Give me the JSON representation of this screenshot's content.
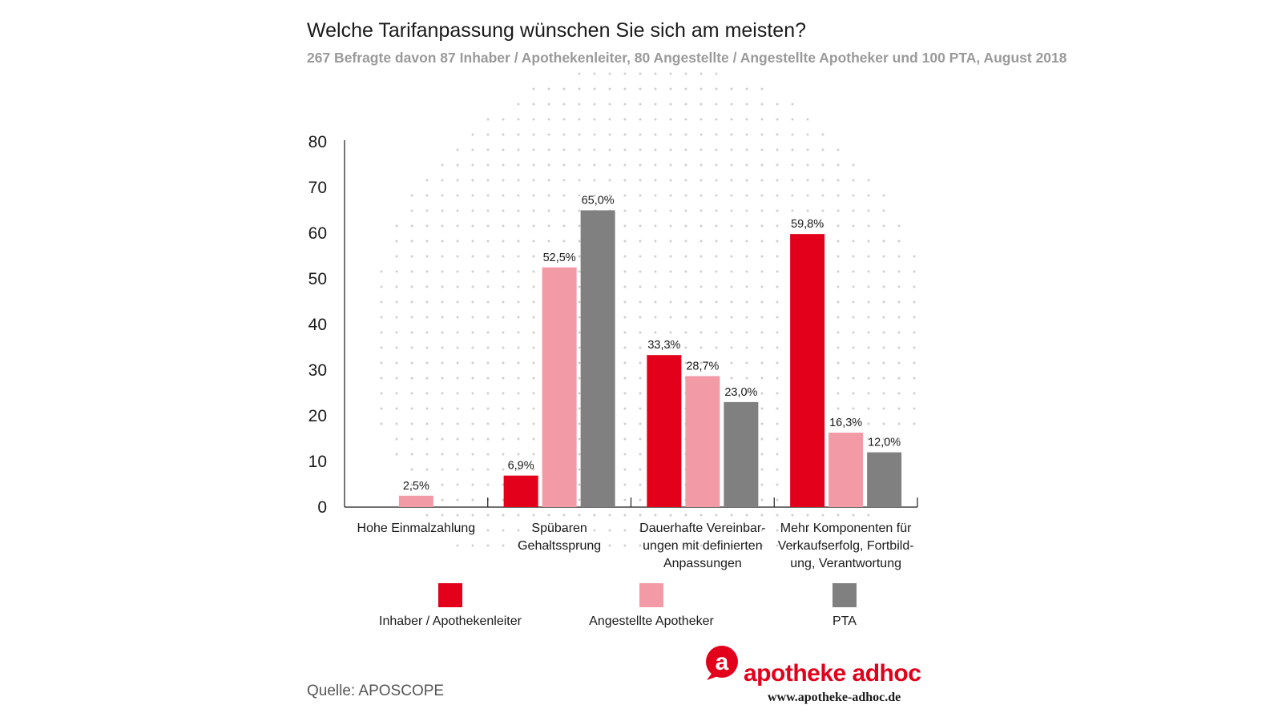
{
  "header": {
    "title": "Welche Tarifanpassung wünschen Sie sich am meisten?",
    "subtitle": "267 Befragte davon 87 Inhaber / Apothekenleiter, 80 Angestellte / Angestellte Apotheker und 100 PTA,  August 2018"
  },
  "chart_data": {
    "type": "bar",
    "title": "Welche Tarifanpassung wünschen Sie sich am meisten?",
    "categories": [
      [
        "Hohe Einmalzahlung"
      ],
      [
        "Spübaren",
        "Gehaltssprung"
      ],
      [
        "Dauerhafte Vereinbar-",
        "ungen mit definierten",
        "Anpassungen"
      ],
      [
        "Mehr Komponenten für",
        "Verkaufserfolg, Fortbild-",
        "ung, Verantwortung"
      ]
    ],
    "series": [
      {
        "name": "Inhaber / Apothekenleiter",
        "color": "#e2001a",
        "values": [
          null,
          6.9,
          33.3,
          59.8
        ],
        "labels": [
          "",
          "6,9%",
          "33,3%",
          "59,8%"
        ]
      },
      {
        "name": "Angestellte Apotheker",
        "color": "#f29ba6",
        "values": [
          2.5,
          52.5,
          28.7,
          16.3
        ],
        "labels": [
          "2,5%",
          "52,5%",
          "28,7%",
          "16,3%"
        ]
      },
      {
        "name": "PTA",
        "color": "#808080",
        "values": [
          null,
          65.0,
          23.0,
          12.0
        ],
        "labels": [
          "",
          "65,0%",
          "23,0%",
          "12,0%"
        ]
      }
    ],
    "yticks": [
      "0",
      "10",
      "20",
      "30",
      "40",
      "50",
      "60",
      "70",
      "80"
    ],
    "ylim": [
      0,
      80
    ],
    "legend_position": "bottom",
    "background": "dot-pattern"
  },
  "footer": {
    "source": "Quelle: APOSCOPE",
    "brand_name": "apotheke adhoc",
    "brand_url": "www.apotheke-adhoc.de",
    "brand_color": "#e2001a",
    "brand_icon": "letter-a-icon"
  }
}
